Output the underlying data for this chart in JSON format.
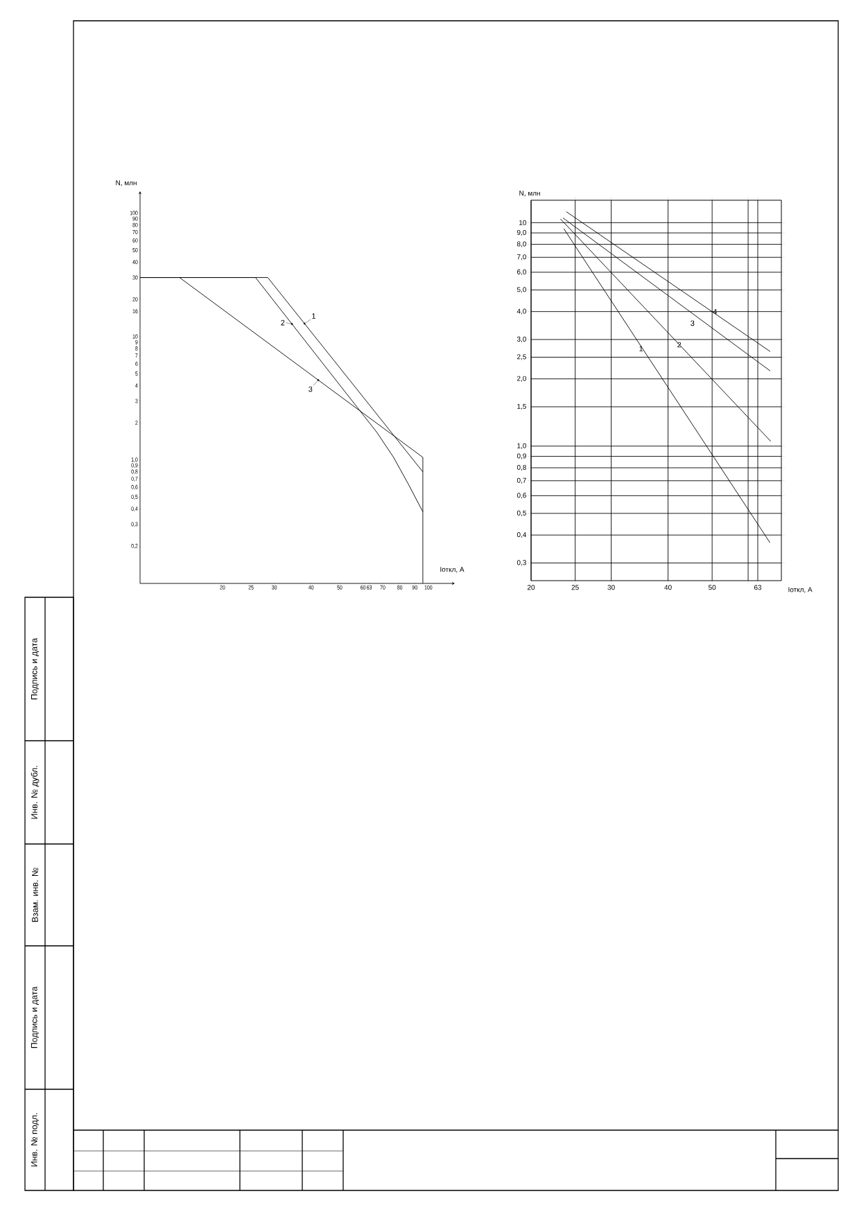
{
  "chart_data": [
    {
      "type": "line",
      "xlabel": "Iоткл, А",
      "ylabel": "N, млн",
      "log": "xy",
      "xlim": [
        10.5,
        123
      ],
      "ylim": [
        0.1,
        150
      ],
      "xticks": [
        20,
        25,
        30,
        40,
        50,
        60,
        63,
        70,
        80,
        90,
        100
      ],
      "yticks": [
        100,
        90,
        80,
        70,
        60,
        50,
        40,
        30,
        20,
        16,
        10,
        9,
        8,
        7,
        6,
        5,
        4,
        3,
        2,
        {
          "value": 1,
          "label": "1,0"
        },
        {
          "value": 0.9,
          "label": "0,9"
        },
        {
          "value": 0.8,
          "label": "0,8"
        },
        {
          "value": 0.7,
          "label": "0,7"
        },
        {
          "value": 0.6,
          "label": "0,6"
        },
        {
          "value": 0.5,
          "label": "0,5"
        },
        {
          "value": 0.4,
          "label": "0,4"
        },
        {
          "value": 0.3,
          "label": "0,3"
        },
        {
          "value": 0.2,
          "label": "0,2"
        }
      ],
      "series": [
        {
          "name": "1",
          "color": "#000000",
          "x": [
            10.5,
            28.5,
            95.8
          ],
          "values": [
            30,
            30,
            0.8
          ]
        },
        {
          "name": "2",
          "color": "#000000",
          "x": [
            10.5,
            25.9,
            66.9,
            76.2,
            85.9,
            95.8
          ],
          "values": [
            30,
            30,
            1.67,
            1.05,
            0.625,
            0.38
          ]
        },
        {
          "name": "3",
          "color": "#000000",
          "x": [
            10.5,
            14.3,
            95.8,
            95.8
          ],
          "values": [
            30,
            30,
            1.05,
            0.1
          ]
        }
      ],
      "annotations": [
        "Подпись и дата",
        "Инв. № дубл.",
        "Взам. инв. №",
        "Подпись и дата",
        "Инв. № подл."
      ]
    },
    {
      "type": "line",
      "xlabel": "Iоткл, А",
      "ylabel": "N, млн",
      "log": "xy",
      "grid": true,
      "xlim": [
        20,
        71
      ],
      "ylim": [
        0.25,
        12.6
      ],
      "xticks": [
        20,
        25,
        30,
        40,
        50,
        {
          "value": 60,
          "label": null
        },
        63
      ],
      "yticks": [
        10,
        {
          "value": 9,
          "label": "9,0"
        },
        {
          "value": 8,
          "label": "8,0"
        },
        {
          "value": 7,
          "label": "7,0"
        },
        {
          "value": 6,
          "label": "6,0"
        },
        {
          "value": 5,
          "label": "5,0"
        },
        {
          "value": 4,
          "label": "4,0"
        },
        {
          "value": 3,
          "label": "3,0"
        },
        {
          "value": 2.5,
          "label": "2,5"
        },
        {
          "value": 2,
          "label": "2,0"
        },
        {
          "value": 1.5,
          "label": "1,5"
        },
        {
          "value": 1,
          "label": "1,0"
        },
        {
          "value": 0.9,
          "label": "0,9"
        },
        {
          "value": 0.8,
          "label": "0,8"
        },
        {
          "value": 0.7,
          "label": "0,7"
        },
        {
          "value": 0.6,
          "label": "0,6"
        },
        {
          "value": 0.5,
          "label": "0,5"
        },
        {
          "value": 0.4,
          "label": "0,4"
        },
        {
          "value": 0.3,
          "label": "0,3"
        }
      ],
      "series": [
        {
          "name": "1",
          "color": "#000000",
          "x": [
            23.6,
            67.0
          ],
          "values": [
            9.4,
            0.37
          ]
        },
        {
          "name": "2",
          "color": "#000000",
          "x": [
            23.2,
            67.3
          ],
          "values": [
            10.4,
            1.05
          ]
        },
        {
          "name": "3",
          "color": "#000000",
          "x": [
            23.5,
            67.1
          ],
          "values": [
            10.5,
            2.17
          ]
        },
        {
          "name": "4",
          "color": "#000000",
          "x": [
            23.9,
            67.1
          ],
          "values": [
            11.2,
            2.65
          ]
        }
      ]
    }
  ]
}
